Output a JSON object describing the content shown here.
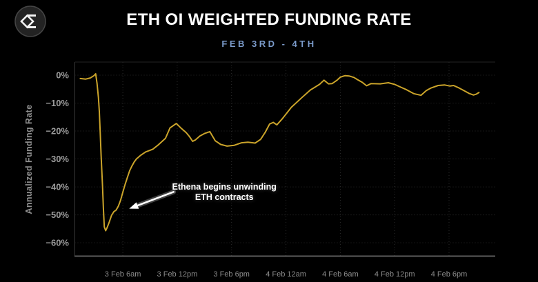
{
  "header": {
    "logo_icon": "sigma-diamond-logo-icon",
    "title": "ETH OI WEIGHTED FUNDING RATE",
    "subtitle": "FEB 3RD - 4TH"
  },
  "colors": {
    "background": "#000000",
    "title": "#ffffff",
    "subtitle": "#7b9bca",
    "line": "#cba42a",
    "grid": "#2d2d2d",
    "y_tick_label": "#9b9b9b",
    "x_tick_label": "#8c8c8c",
    "axis_title": "#8f8f8f",
    "annotation": "#ffffff"
  },
  "chart_data": {
    "type": "line",
    "title": "ETH OI WEIGHTED FUNDING RATE",
    "subtitle": "FEB 3RD - 4TH",
    "ylabel": "Annualized Funding Rate",
    "xlabel": "",
    "x_unit": "hours since 3 Feb 12:00am",
    "xlim": [
      0.7,
      47.1
    ],
    "ylim": [
      -64.8,
      4.7
    ],
    "grid": true,
    "legend": "none",
    "x_ticks": [
      {
        "v": 6,
        "label": "3 Feb 6am"
      },
      {
        "v": 12,
        "label": "3 Feb 12pm"
      },
      {
        "v": 18,
        "label": "3 Feb 6pm"
      },
      {
        "v": 24,
        "label": "4 Feb 12am"
      },
      {
        "v": 30,
        "label": "4 Feb 6am"
      },
      {
        "v": 36,
        "label": "4 Feb 12pm"
      },
      {
        "v": 42,
        "label": "4 Feb 6pm"
      }
    ],
    "y_ticks": [
      {
        "v": 0,
        "label": "0%"
      },
      {
        "v": -10,
        "label": "−10%"
      },
      {
        "v": -20,
        "label": "−20%"
      },
      {
        "v": -30,
        "label": "−30%"
      },
      {
        "v": -40,
        "label": "−40%"
      },
      {
        "v": -50,
        "label": "−50%"
      },
      {
        "v": -60,
        "label": "−60%"
      }
    ],
    "series": [
      {
        "name": "ETH OI weighted funding rate (annualized)",
        "color": "#cba42a",
        "points": [
          [
            1.3,
            -1.2
          ],
          [
            1.9,
            -1.4
          ],
          [
            2.4,
            -1.0
          ],
          [
            2.8,
            -0.2
          ],
          [
            3.0,
            0.5
          ],
          [
            3.15,
            -3.0
          ],
          [
            3.3,
            -8.0
          ],
          [
            3.4,
            -13.0
          ],
          [
            3.5,
            -20.6
          ],
          [
            3.6,
            -28.8
          ],
          [
            3.75,
            -39.5
          ],
          [
            3.85,
            -47.7
          ],
          [
            3.95,
            -54.3
          ],
          [
            4.1,
            -55.7
          ],
          [
            4.25,
            -54.7
          ],
          [
            4.5,
            -52.6
          ],
          [
            4.75,
            -50.2
          ],
          [
            5.0,
            -48.9
          ],
          [
            5.25,
            -48.3
          ],
          [
            5.5,
            -46.9
          ],
          [
            5.75,
            -44.8
          ],
          [
            6.0,
            -41.9
          ],
          [
            6.25,
            -39.1
          ],
          [
            6.5,
            -36.6
          ],
          [
            6.75,
            -34.2
          ],
          [
            7.0,
            -32.5
          ],
          [
            7.25,
            -31.1
          ],
          [
            7.5,
            -30.0
          ],
          [
            8.0,
            -28.6
          ],
          [
            8.5,
            -27.5
          ],
          [
            9.3,
            -26.5
          ],
          [
            9.9,
            -25.0
          ],
          [
            10.7,
            -22.6
          ],
          [
            11.2,
            -18.9
          ],
          [
            11.9,
            -17.3
          ],
          [
            12.4,
            -18.9
          ],
          [
            13.0,
            -20.6
          ],
          [
            13.35,
            -22.0
          ],
          [
            13.7,
            -23.7
          ],
          [
            14.0,
            -23.2
          ],
          [
            14.5,
            -21.8
          ],
          [
            15.0,
            -20.9
          ],
          [
            15.6,
            -20.2
          ],
          [
            16.2,
            -23.5
          ],
          [
            16.8,
            -24.8
          ],
          [
            17.5,
            -25.4
          ],
          [
            18.3,
            -25.1
          ],
          [
            19.1,
            -24.2
          ],
          [
            19.8,
            -24.0
          ],
          [
            20.6,
            -24.3
          ],
          [
            21.2,
            -23.0
          ],
          [
            21.7,
            -20.5
          ],
          [
            22.2,
            -17.5
          ],
          [
            22.6,
            -16.9
          ],
          [
            23.0,
            -17.8
          ],
          [
            23.6,
            -15.6
          ],
          [
            24.6,
            -11.5
          ],
          [
            25.7,
            -8.2
          ],
          [
            26.7,
            -5.3
          ],
          [
            27.7,
            -3.3
          ],
          [
            28.2,
            -1.8
          ],
          [
            28.7,
            -3.1
          ],
          [
            29.1,
            -3.0
          ],
          [
            29.6,
            -1.9
          ],
          [
            30.0,
            -0.7
          ],
          [
            30.5,
            -0.2
          ],
          [
            31.0,
            -0.3
          ],
          [
            31.5,
            -0.8
          ],
          [
            31.9,
            -1.6
          ],
          [
            32.4,
            -2.5
          ],
          [
            32.9,
            -3.8
          ],
          [
            33.4,
            -3.0
          ],
          [
            34.4,
            -3.1
          ],
          [
            35.3,
            -2.7
          ],
          [
            36.0,
            -3.3
          ],
          [
            36.6,
            -4.2
          ],
          [
            37.3,
            -5.2
          ],
          [
            38.1,
            -6.6
          ],
          [
            38.9,
            -7.2
          ],
          [
            39.5,
            -5.5
          ],
          [
            40.0,
            -4.6
          ],
          [
            40.8,
            -3.7
          ],
          [
            41.5,
            -3.5
          ],
          [
            42.1,
            -3.9
          ],
          [
            42.5,
            -3.7
          ],
          [
            43.0,
            -4.4
          ],
          [
            43.7,
            -5.6
          ],
          [
            44.2,
            -6.5
          ],
          [
            44.7,
            -7.1
          ],
          [
            45.0,
            -6.8
          ],
          [
            45.3,
            -6.2
          ]
        ]
      }
    ],
    "annotation": {
      "line1": "Ethena begins unwinding",
      "line2": "ETH contracts",
      "text_center": [
        17.2,
        -42.0
      ],
      "arrow_from": [
        11.6,
        -41.8
      ],
      "arrow_to": [
        6.7,
        -47.8
      ]
    }
  }
}
